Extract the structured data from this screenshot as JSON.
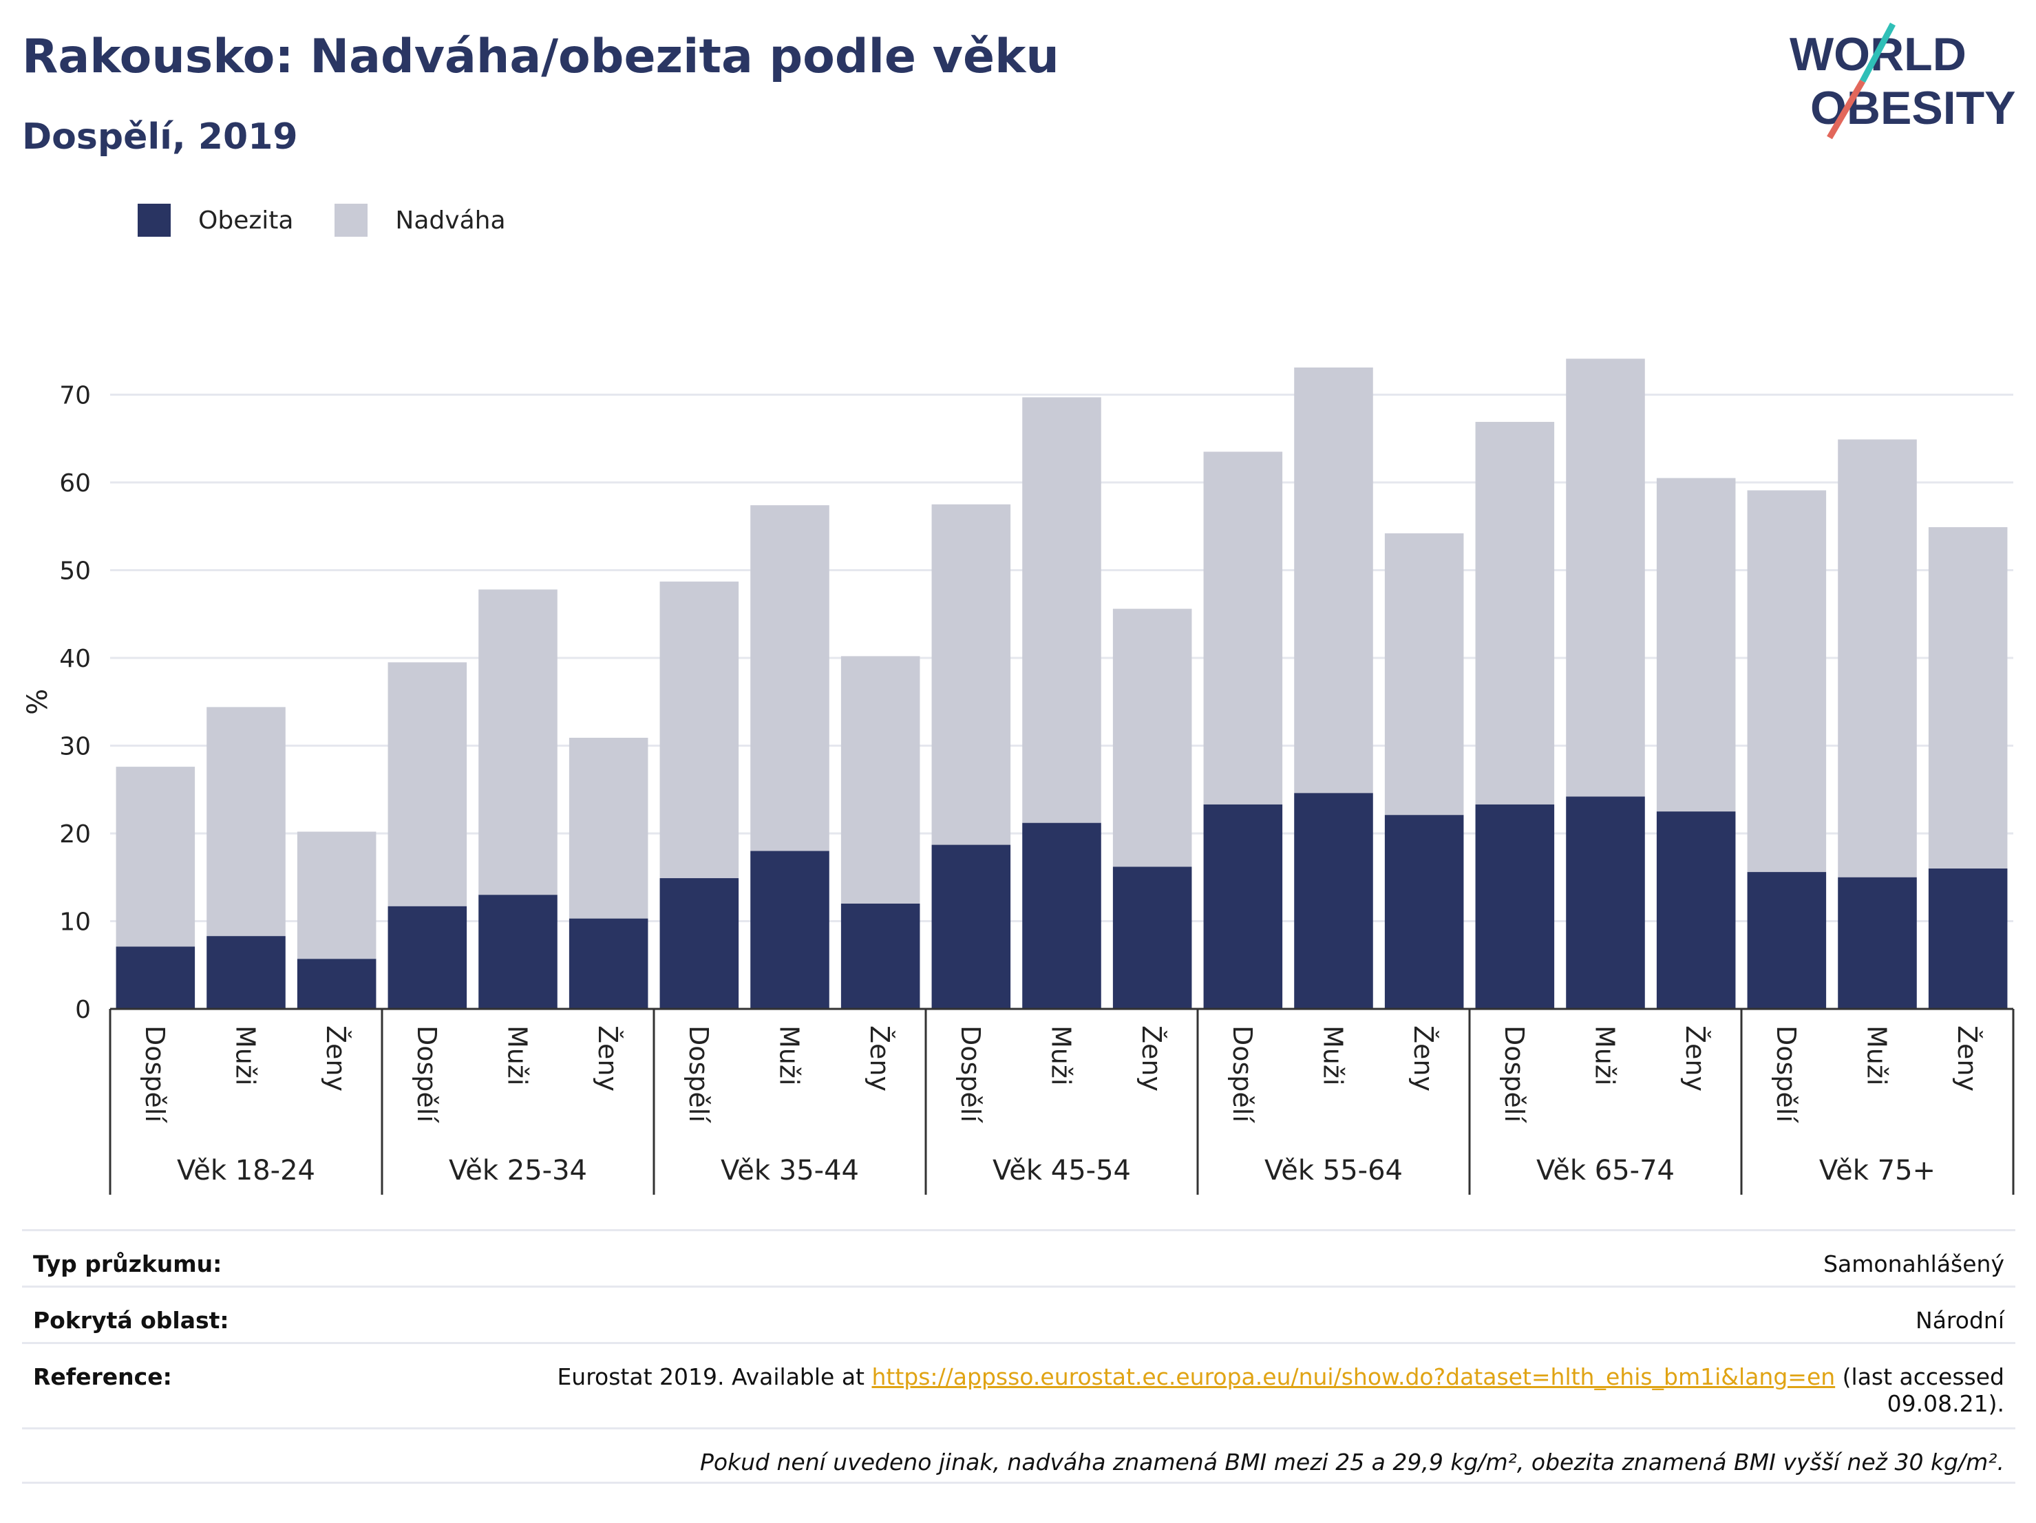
{
  "header": {
    "title": "Rakousko: Nadváha/obezita podle věku",
    "subtitle": "Dospělí, 2019"
  },
  "logo": {
    "line1": "WORLD",
    "line2": "OBESITY"
  },
  "legend": [
    {
      "label": "Obezita",
      "color": "#293462"
    },
    {
      "label": "Nadváha",
      "color": "#c9cbd6"
    }
  ],
  "chart_data": {
    "type": "bar",
    "stacked": true,
    "ylabel": "%",
    "ylim": [
      0,
      75
    ],
    "yticks": [
      0,
      10,
      20,
      30,
      40,
      50,
      60,
      70
    ],
    "grid": true,
    "legend_position": "top-left",
    "groups": [
      "Věk 18-24",
      "Věk 25-34",
      "Věk 35-44",
      "Věk 45-54",
      "Věk 55-64",
      "Věk 65-74",
      "Věk 75+"
    ],
    "subcategories": [
      "Dospělí",
      "Muži",
      "Ženy"
    ],
    "series": [
      {
        "name": "Obezita",
        "color": "#293462",
        "values": [
          7.1,
          8.3,
          5.7,
          11.7,
          13.0,
          10.3,
          14.9,
          18.0,
          12.0,
          18.7,
          21.2,
          16.2,
          23.3,
          24.6,
          22.1,
          23.3,
          24.2,
          22.5,
          15.6,
          15.0,
          16.0
        ]
      },
      {
        "name": "Nadváha",
        "color": "#c9cbd6",
        "values": [
          20.5,
          26.1,
          14.5,
          27.8,
          34.8,
          20.6,
          33.8,
          39.4,
          28.2,
          38.8,
          48.5,
          29.4,
          40.2,
          48.5,
          32.1,
          43.6,
          49.9,
          38.0,
          43.5,
          49.9,
          38.9
        ]
      }
    ]
  },
  "info": {
    "survey_type_label": "Typ průzkumu:",
    "survey_type_value": "Samonahlášený",
    "area_label": "Pokrytá oblast:",
    "area_value": "Národní",
    "reference_label": "Reference:",
    "reference_prefix": "Eurostat 2019. Available at ",
    "reference_link": "https://appsso.eurostat.ec.europa.eu/nui/show.do?dataset=hlth_ehis_bm1i&lang=en",
    "reference_suffix": " (last accessed",
    "reference_date": "09.08.21).",
    "note": "Pokud není uvedeno jinak, nadváha znamená BMI mezi 25 a 29,9 kg/m², obezita znamená BMI vyšší než 30 kg/m²."
  }
}
